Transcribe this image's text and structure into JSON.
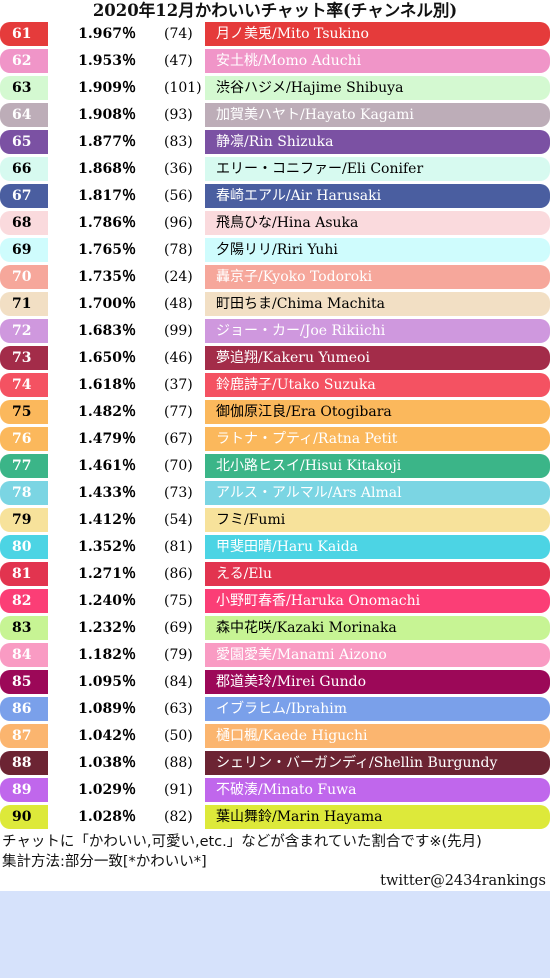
{
  "title": "2020年12月かわいいチャット率(チャンネル別)",
  "rows": [
    {
      "rank": "61",
      "pct": "1.967％",
      "count": "(74)",
      "name": "月ノ美兎/Mito Tsukino",
      "bg": "#e53b3b",
      "fg": "#ffffff"
    },
    {
      "rank": "62",
      "pct": "1.953％",
      "count": "(47)",
      "name": "安土桃/Momo Aduchi",
      "bg": "#f095c8",
      "fg": "#ffffff"
    },
    {
      "rank": "63",
      "pct": "1.909％",
      "count": "(101)",
      "name": "渋谷ハジメ/Hajime Shibuya",
      "bg": "#d4f9d1",
      "fg": "#000000"
    },
    {
      "rank": "64",
      "pct": "1.908％",
      "count": "(93)",
      "name": "加賀美ハヤト/Hayato Kagami",
      "bg": "#bdadb8",
      "fg": "#ffffff"
    },
    {
      "rank": "65",
      "pct": "1.877％",
      "count": "(83)",
      "name": "静凛/Rin Shizuka",
      "bg": "#7b51a3",
      "fg": "#ffffff"
    },
    {
      "rank": "66",
      "pct": "1.868％",
      "count": "(36)",
      "name": "エリー・コニファー/Eli Conifer",
      "bg": "#d7faf0",
      "fg": "#000000"
    },
    {
      "rank": "67",
      "pct": "1.817％",
      "count": "(56)",
      "name": "春崎エアル/Air Harusaki",
      "bg": "#4a5ea0",
      "fg": "#ffffff"
    },
    {
      "rank": "68",
      "pct": "1.786％",
      "count": "(96)",
      "name": "飛鳥ひな/Hina Asuka",
      "bg": "#fadadd",
      "fg": "#000000"
    },
    {
      "rank": "69",
      "pct": "1.765％",
      "count": "(78)",
      "name": "夕陽リリ/Riri Yuhi",
      "bg": "#cffcfd",
      "fg": "#000000"
    },
    {
      "rank": "70",
      "pct": "1.735％",
      "count": "(24)",
      "name": "轟京子/Kyoko Todoroki",
      "bg": "#f6a79b",
      "fg": "#ffffff"
    },
    {
      "rank": "71",
      "pct": "1.700％",
      "count": "(48)",
      "name": "町田ちま/Chima Machita",
      "bg": "#f2dfc4",
      "fg": "#000000"
    },
    {
      "rank": "72",
      "pct": "1.683％",
      "count": "(99)",
      "name": "ジョー・カー/Joe Rikiichi",
      "bg": "#cf98de",
      "fg": "#ffffff"
    },
    {
      "rank": "73",
      "pct": "1.650％",
      "count": "(46)",
      "name": "夢追翔/Kakeru Yumeoi",
      "bg": "#a32c49",
      "fg": "#ffffff"
    },
    {
      "rank": "74",
      "pct": "1.618％",
      "count": "(37)",
      "name": "鈴鹿詩子/Utako Suzuka",
      "bg": "#f45262",
      "fg": "#ffffff"
    },
    {
      "rank": "75",
      "pct": "1.482％",
      "count": "(77)",
      "name": "御伽原江良/Era Otogibara",
      "bg": "#fbb85c",
      "fg": "#000000"
    },
    {
      "rank": "76",
      "pct": "1.479％",
      "count": "(67)",
      "name": "ラトナ・プティ/Ratna Petit",
      "bg": "#fbb85c",
      "fg": "#ffffff"
    },
    {
      "rank": "77",
      "pct": "1.461％",
      "count": "(70)",
      "name": "北小路ヒスイ/Hisui Kitakoji",
      "bg": "#3bb588",
      "fg": "#ffffff"
    },
    {
      "rank": "78",
      "pct": "1.433％",
      "count": "(73)",
      "name": "アルス・アルマル/Ars Almal",
      "bg": "#7bd5e3",
      "fg": "#ffffff"
    },
    {
      "rank": "79",
      "pct": "1.412％",
      "count": "(54)",
      "name": "フミ/Fumi",
      "bg": "#f7e29b",
      "fg": "#000000"
    },
    {
      "rank": "80",
      "pct": "1.352％",
      "count": "(81)",
      "name": "甲斐田晴/Haru Kaida",
      "bg": "#4cd4e4",
      "fg": "#ffffff"
    },
    {
      "rank": "81",
      "pct": "1.271％",
      "count": "(86)",
      "name": "える/Elu",
      "bg": "#e2344f",
      "fg": "#ffffff"
    },
    {
      "rank": "82",
      "pct": "1.240％",
      "count": "(75)",
      "name": "小野町春香/Haruka Onomachi",
      "bg": "#fb3e76",
      "fg": "#ffffff"
    },
    {
      "rank": "83",
      "pct": "1.232％",
      "count": "(69)",
      "name": "森中花咲/Kazaki Morinaka",
      "bg": "#c7f494",
      "fg": "#000000"
    },
    {
      "rank": "84",
      "pct": "1.182％",
      "count": "(79)",
      "name": "愛園愛美/Manami Aizono",
      "bg": "#f99bc3",
      "fg": "#ffffff"
    },
    {
      "rank": "85",
      "pct": "1.095％",
      "count": "(84)",
      "name": "郡道美玲/Mirei Gundo",
      "bg": "#9c0858",
      "fg": "#ffffff"
    },
    {
      "rank": "86",
      "pct": "1.089％",
      "count": "(63)",
      "name": "イブラヒム/Ibrahim",
      "bg": "#7aa0ea",
      "fg": "#ffffff"
    },
    {
      "rank": "87",
      "pct": "1.042％",
      "count": "(50)",
      "name": "樋口楓/Kaede Higuchi",
      "bg": "#fbb56f",
      "fg": "#ffffff"
    },
    {
      "rank": "88",
      "pct": "1.038％",
      "count": "(88)",
      "name": "シェリン・バーガンディ/Shellin Burgundy",
      "bg": "#6c2433",
      "fg": "#ffffff"
    },
    {
      "rank": "89",
      "pct": "1.029％",
      "count": "(91)",
      "name": "不破湊/Minato Fuwa",
      "bg": "#c067ec",
      "fg": "#ffffff"
    },
    {
      "rank": "90",
      "pct": "1.028％",
      "count": "(82)",
      "name": "葉山舞鈴/Marin Hayama",
      "bg": "#dde93a",
      "fg": "#000000"
    }
  ],
  "notes": {
    "line1": "チャットに「かわいい,可愛い,etc.」などが含まれていた割合です※(先月)",
    "line2": "集計方法:部分一致[*かわいい*]"
  },
  "credit": "twitter@2434rankings"
}
